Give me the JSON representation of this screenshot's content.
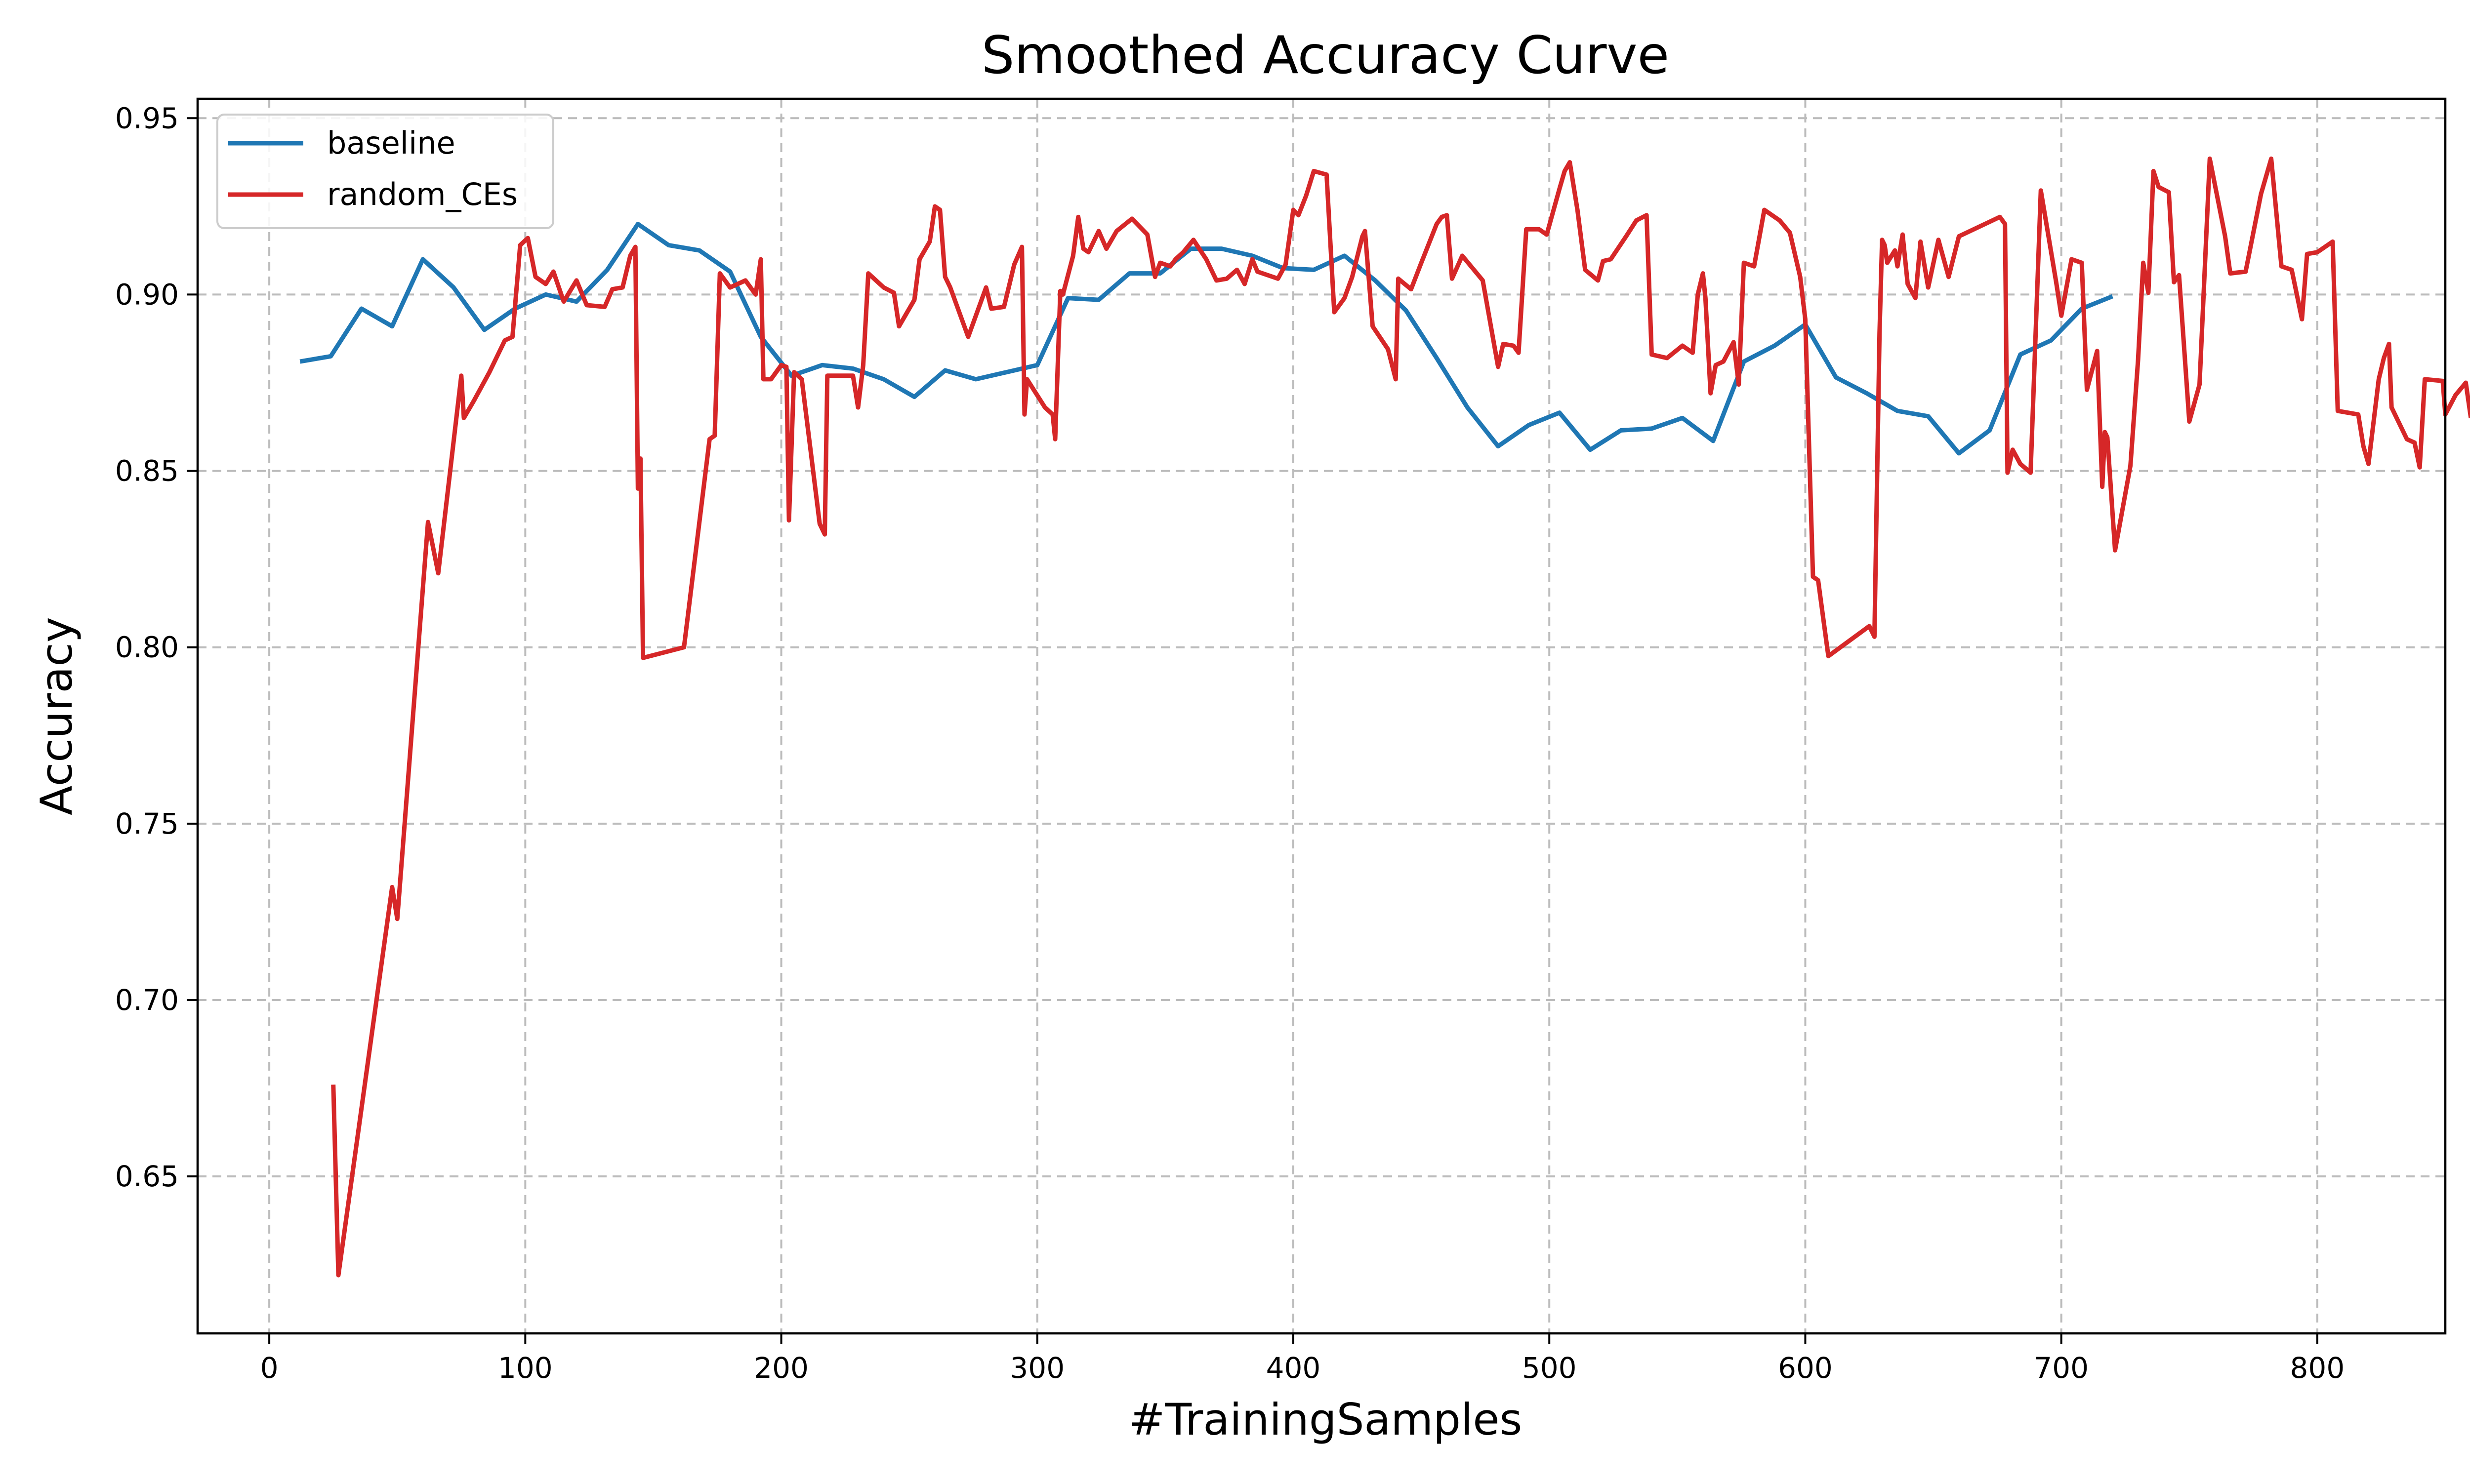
{
  "chart_data": {
    "type": "line",
    "title": "Smoothed Accuracy Curve",
    "xlabel": "#TrainingSamples",
    "ylabel": "Accuracy",
    "xlim": [
      -28,
      850
    ],
    "ylim": [
      0.6055,
      0.9555
    ],
    "xticks": [
      0,
      100,
      200,
      300,
      400,
      500,
      600,
      700,
      800
    ],
    "yticks": [
      0.65,
      0.7,
      0.75,
      0.8,
      0.85,
      0.9,
      0.95
    ],
    "ytick_labels": [
      "0.65",
      "0.70",
      "0.75",
      "0.80",
      "0.85",
      "0.90",
      "0.95"
    ],
    "grid": true,
    "legend_position": "top-left",
    "series": [
      {
        "name": "baseline",
        "color": "#1f77b4",
        "points": [
          [
            12,
            0.881
          ],
          [
            24,
            0.8825
          ],
          [
            36,
            0.896
          ],
          [
            48,
            0.891
          ],
          [
            60,
            0.91
          ],
          [
            72,
            0.902
          ],
          [
            84,
            0.89
          ],
          [
            96,
            0.896
          ],
          [
            108,
            0.9
          ],
          [
            120,
            0.898
          ],
          [
            132,
            0.907
          ],
          [
            144,
            0.92
          ],
          [
            156,
            0.914
          ],
          [
            168,
            0.9125
          ],
          [
            180,
            0.9065
          ],
          [
            192,
            0.888
          ],
          [
            204,
            0.877
          ],
          [
            216,
            0.88
          ],
          [
            228,
            0.879
          ],
          [
            240,
            0.876
          ],
          [
            252,
            0.871
          ],
          [
            264,
            0.8785
          ],
          [
            276,
            0.876
          ],
          [
            288,
            0.878
          ],
          [
            300,
            0.88
          ],
          [
            312,
            0.899
          ],
          [
            324,
            0.8985
          ],
          [
            336,
            0.906
          ],
          [
            348,
            0.906
          ],
          [
            360,
            0.913
          ],
          [
            372,
            0.913
          ],
          [
            384,
            0.911
          ],
          [
            396,
            0.9075
          ],
          [
            408,
            0.907
          ],
          [
            420,
            0.911
          ],
          [
            432,
            0.904
          ],
          [
            444,
            0.8955
          ],
          [
            456,
            0.882
          ],
          [
            468,
            0.868
          ],
          [
            480,
            0.857
          ],
          [
            492,
            0.863
          ],
          [
            504,
            0.8665
          ],
          [
            516,
            0.856
          ],
          [
            528,
            0.8615
          ],
          [
            540,
            0.862
          ],
          [
            552,
            0.865
          ],
          [
            564,
            0.8585
          ],
          [
            576,
            0.881
          ],
          [
            588,
            0.8855
          ],
          [
            600,
            0.8915
          ],
          [
            612,
            0.8765
          ],
          [
            624,
            0.872
          ],
          [
            636,
            0.867
          ],
          [
            648,
            0.8655
          ],
          [
            660,
            0.855
          ],
          [
            672,
            0.8615
          ],
          [
            684,
            0.883
          ],
          [
            696,
            0.887
          ],
          [
            708,
            0.896
          ],
          [
            720,
            0.8995
          ]
        ]
      },
      {
        "name": "random_CEs",
        "color": "#d62728",
        "points": [
          [
            25,
            0.676
          ],
          [
            27,
            0.622
          ],
          [
            48,
            0.732
          ],
          [
            50,
            0.723
          ],
          [
            62,
            0.8355
          ],
          [
            66,
            0.821
          ],
          [
            75,
            0.877
          ],
          [
            76,
            0.865
          ],
          [
            80,
            0.87
          ],
          [
            86,
            0.878
          ],
          [
            92,
            0.887
          ],
          [
            95,
            0.888
          ],
          [
            98,
            0.914
          ],
          [
            101,
            0.916
          ],
          [
            104,
            0.905
          ],
          [
            108,
            0.903
          ],
          [
            111,
            0.9065
          ],
          [
            115,
            0.898
          ],
          [
            120,
            0.904
          ],
          [
            124,
            0.897
          ],
          [
            131,
            0.8965
          ],
          [
            134,
            0.9015
          ],
          [
            138,
            0.902
          ],
          [
            141,
            0.911
          ],
          [
            143,
            0.9135
          ],
          [
            144,
            0.845
          ],
          [
            145,
            0.8535
          ],
          [
            146,
            0.797
          ],
          [
            162,
            0.8
          ],
          [
            172,
            0.859
          ],
          [
            174,
            0.86
          ],
          [
            176,
            0.906
          ],
          [
            180,
            0.902
          ],
          [
            186,
            0.904
          ],
          [
            190,
            0.9
          ],
          [
            192,
            0.91
          ],
          [
            193,
            0.876
          ],
          [
            196,
            0.876
          ],
          [
            200,
            0.88
          ],
          [
            202,
            0.8795
          ],
          [
            203,
            0.836
          ],
          [
            205,
            0.878
          ],
          [
            208,
            0.876
          ],
          [
            215,
            0.835
          ],
          [
            217,
            0.832
          ],
          [
            218,
            0.877
          ],
          [
            228,
            0.877
          ],
          [
            230,
            0.868
          ],
          [
            232,
            0.88
          ],
          [
            234,
            0.906
          ],
          [
            240,
            0.902
          ],
          [
            244,
            0.9005
          ],
          [
            246,
            0.891
          ],
          [
            252,
            0.8985
          ],
          [
            254,
            0.91
          ],
          [
            258,
            0.915
          ],
          [
            260,
            0.925
          ],
          [
            262,
            0.924
          ],
          [
            264,
            0.905
          ],
          [
            266,
            0.902
          ],
          [
            273,
            0.888
          ],
          [
            280,
            0.902
          ],
          [
            282,
            0.896
          ],
          [
            287,
            0.8965
          ],
          [
            291,
            0.9085
          ],
          [
            294,
            0.9135
          ],
          [
            295,
            0.866
          ],
          [
            296,
            0.876
          ],
          [
            303,
            0.868
          ],
          [
            306,
            0.866
          ],
          [
            307,
            0.859
          ],
          [
            309,
            0.901
          ],
          [
            310,
            0.9
          ],
          [
            314,
            0.911
          ],
          [
            316,
            0.922
          ],
          [
            318,
            0.913
          ],
          [
            320,
            0.912
          ],
          [
            324,
            0.918
          ],
          [
            327,
            0.913
          ],
          [
            331,
            0.918
          ],
          [
            337,
            0.9215
          ],
          [
            343,
            0.917
          ],
          [
            346,
            0.905
          ],
          [
            348,
            0.909
          ],
          [
            352,
            0.908
          ],
          [
            354,
            0.91
          ],
          [
            357,
            0.912
          ],
          [
            361,
            0.9155
          ],
          [
            366,
            0.91
          ],
          [
            370,
            0.904
          ],
          [
            374,
            0.9045
          ],
          [
            378,
            0.907
          ],
          [
            381,
            0.903
          ],
          [
            384,
            0.91
          ],
          [
            386,
            0.9065
          ],
          [
            394,
            0.9045
          ],
          [
            397,
            0.9085
          ],
          [
            400,
            0.924
          ],
          [
            402,
            0.9225
          ],
          [
            405,
            0.928
          ],
          [
            408,
            0.935
          ],
          [
            413,
            0.934
          ],
          [
            416,
            0.895
          ],
          [
            420,
            0.899
          ],
          [
            423,
            0.905
          ],
          [
            427,
            0.9165
          ],
          [
            428,
            0.918
          ],
          [
            431,
            0.891
          ],
          [
            437,
            0.8845
          ],
          [
            440,
            0.876
          ],
          [
            441,
            0.9045
          ],
          [
            446,
            0.9015
          ],
          [
            450,
            0.909
          ],
          [
            456,
            0.92
          ],
          [
            458,
            0.922
          ],
          [
            460,
            0.9225
          ],
          [
            462,
            0.9045
          ],
          [
            466,
            0.911
          ],
          [
            474,
            0.904
          ],
          [
            480,
            0.8795
          ],
          [
            482,
            0.886
          ],
          [
            486,
            0.8855
          ],
          [
            488,
            0.8835
          ],
          [
            491,
            0.9185
          ],
          [
            496,
            0.9185
          ],
          [
            499,
            0.917
          ],
          [
            504,
            0.93
          ],
          [
            506,
            0.935
          ],
          [
            508,
            0.9375
          ],
          [
            511,
            0.924
          ],
          [
            514,
            0.907
          ],
          [
            519,
            0.904
          ],
          [
            521,
            0.9095
          ],
          [
            524,
            0.91
          ],
          [
            530,
            0.9165
          ],
          [
            534,
            0.921
          ],
          [
            538,
            0.9225
          ],
          [
            540,
            0.883
          ],
          [
            546,
            0.882
          ],
          [
            552,
            0.8855
          ],
          [
            556,
            0.8835
          ],
          [
            558,
            0.9
          ],
          [
            560,
            0.906
          ],
          [
            561,
            0.899
          ],
          [
            563,
            0.872
          ],
          [
            565,
            0.88
          ],
          [
            568,
            0.881
          ],
          [
            572,
            0.8865
          ],
          [
            574,
            0.8745
          ],
          [
            576,
            0.909
          ],
          [
            580,
            0.908
          ],
          [
            584,
            0.924
          ],
          [
            590,
            0.921
          ],
          [
            594,
            0.9175
          ],
          [
            598,
            0.905
          ],
          [
            600,
            0.893
          ],
          [
            603,
            0.82
          ],
          [
            605,
            0.819
          ],
          [
            609,
            0.7975
          ],
          [
            625,
            0.806
          ],
          [
            627,
            0.803
          ],
          [
            629,
            0.889
          ],
          [
            630,
            0.9155
          ],
          [
            631,
            0.914
          ],
          [
            632,
            0.909
          ],
          [
            635,
            0.9125
          ],
          [
            636,
            0.908
          ],
          [
            638,
            0.917
          ],
          [
            640,
            0.903
          ],
          [
            643,
            0.899
          ],
          [
            645,
            0.915
          ],
          [
            648,
            0.902
          ],
          [
            652,
            0.9155
          ],
          [
            656,
            0.905
          ],
          [
            660,
            0.9165
          ],
          [
            676,
            0.922
          ],
          [
            678,
            0.92
          ],
          [
            679,
            0.8495
          ],
          [
            681,
            0.856
          ],
          [
            684,
            0.852
          ],
          [
            688,
            0.8495
          ],
          [
            692,
            0.9295
          ],
          [
            698,
            0.9035
          ],
          [
            700,
            0.894
          ],
          [
            704,
            0.91
          ],
          [
            708,
            0.909
          ],
          [
            710,
            0.873
          ],
          [
            714,
            0.884
          ],
          [
            716,
            0.8455
          ],
          [
            717,
            0.861
          ],
          [
            718,
            0.8595
          ],
          [
            721,
            0.8275
          ],
          [
            727,
            0.8515
          ],
          [
            730,
            0.8815
          ],
          [
            732,
            0.909
          ],
          [
            734,
            0.9005
          ],
          [
            736,
            0.935
          ],
          [
            738,
            0.9305
          ],
          [
            742,
            0.929
          ],
          [
            744,
            0.9035
          ],
          [
            746,
            0.9055
          ],
          [
            750,
            0.864
          ],
          [
            754,
            0.8745
          ],
          [
            758,
            0.9385
          ],
          [
            764,
            0.9165
          ],
          [
            766,
            0.906
          ],
          [
            772,
            0.9065
          ],
          [
            778,
            0.9285
          ],
          [
            782,
            0.9385
          ],
          [
            786,
            0.908
          ],
          [
            790,
            0.907
          ],
          [
            794,
            0.893
          ],
          [
            796,
            0.9115
          ],
          [
            800,
            0.912
          ],
          [
            806,
            0.915
          ],
          [
            808,
            0.867
          ],
          [
            816,
            0.866
          ],
          [
            818,
            0.857
          ],
          [
            820,
            0.852
          ],
          [
            824,
            0.876
          ],
          [
            826,
            0.882
          ],
          [
            828,
            0.886
          ],
          [
            829,
            0.868
          ],
          [
            835,
            0.859
          ],
          [
            838,
            0.858
          ],
          [
            840,
            0.851
          ],
          [
            842,
            0.876
          ],
          [
            849,
            0.8755
          ],
          [
            850,
            0.866
          ],
          [
            854,
            0.8715
          ],
          [
            858,
            0.875
          ],
          [
            860,
            0.865
          ]
        ]
      }
    ]
  }
}
